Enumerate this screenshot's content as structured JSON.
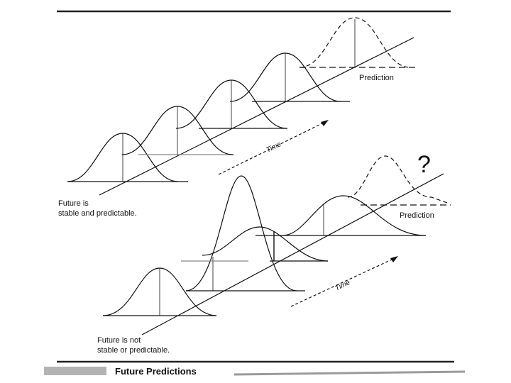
{
  "top_panel": {
    "caption_line1": "Future is",
    "caption_line2": "stable and predictable.",
    "time_label": "Time",
    "prediction_label": "Prediction"
  },
  "bottom_panel": {
    "caption_line1": "Future is not",
    "caption_line2": "stable or predictable.",
    "time_label": "Time",
    "prediction_label": "Prediction",
    "question_mark": "?"
  },
  "footer": {
    "title": "Future Predictions"
  },
  "colors": {
    "ink": "#111111",
    "rule": "#222222",
    "grey_band": "#9a9a9a"
  }
}
